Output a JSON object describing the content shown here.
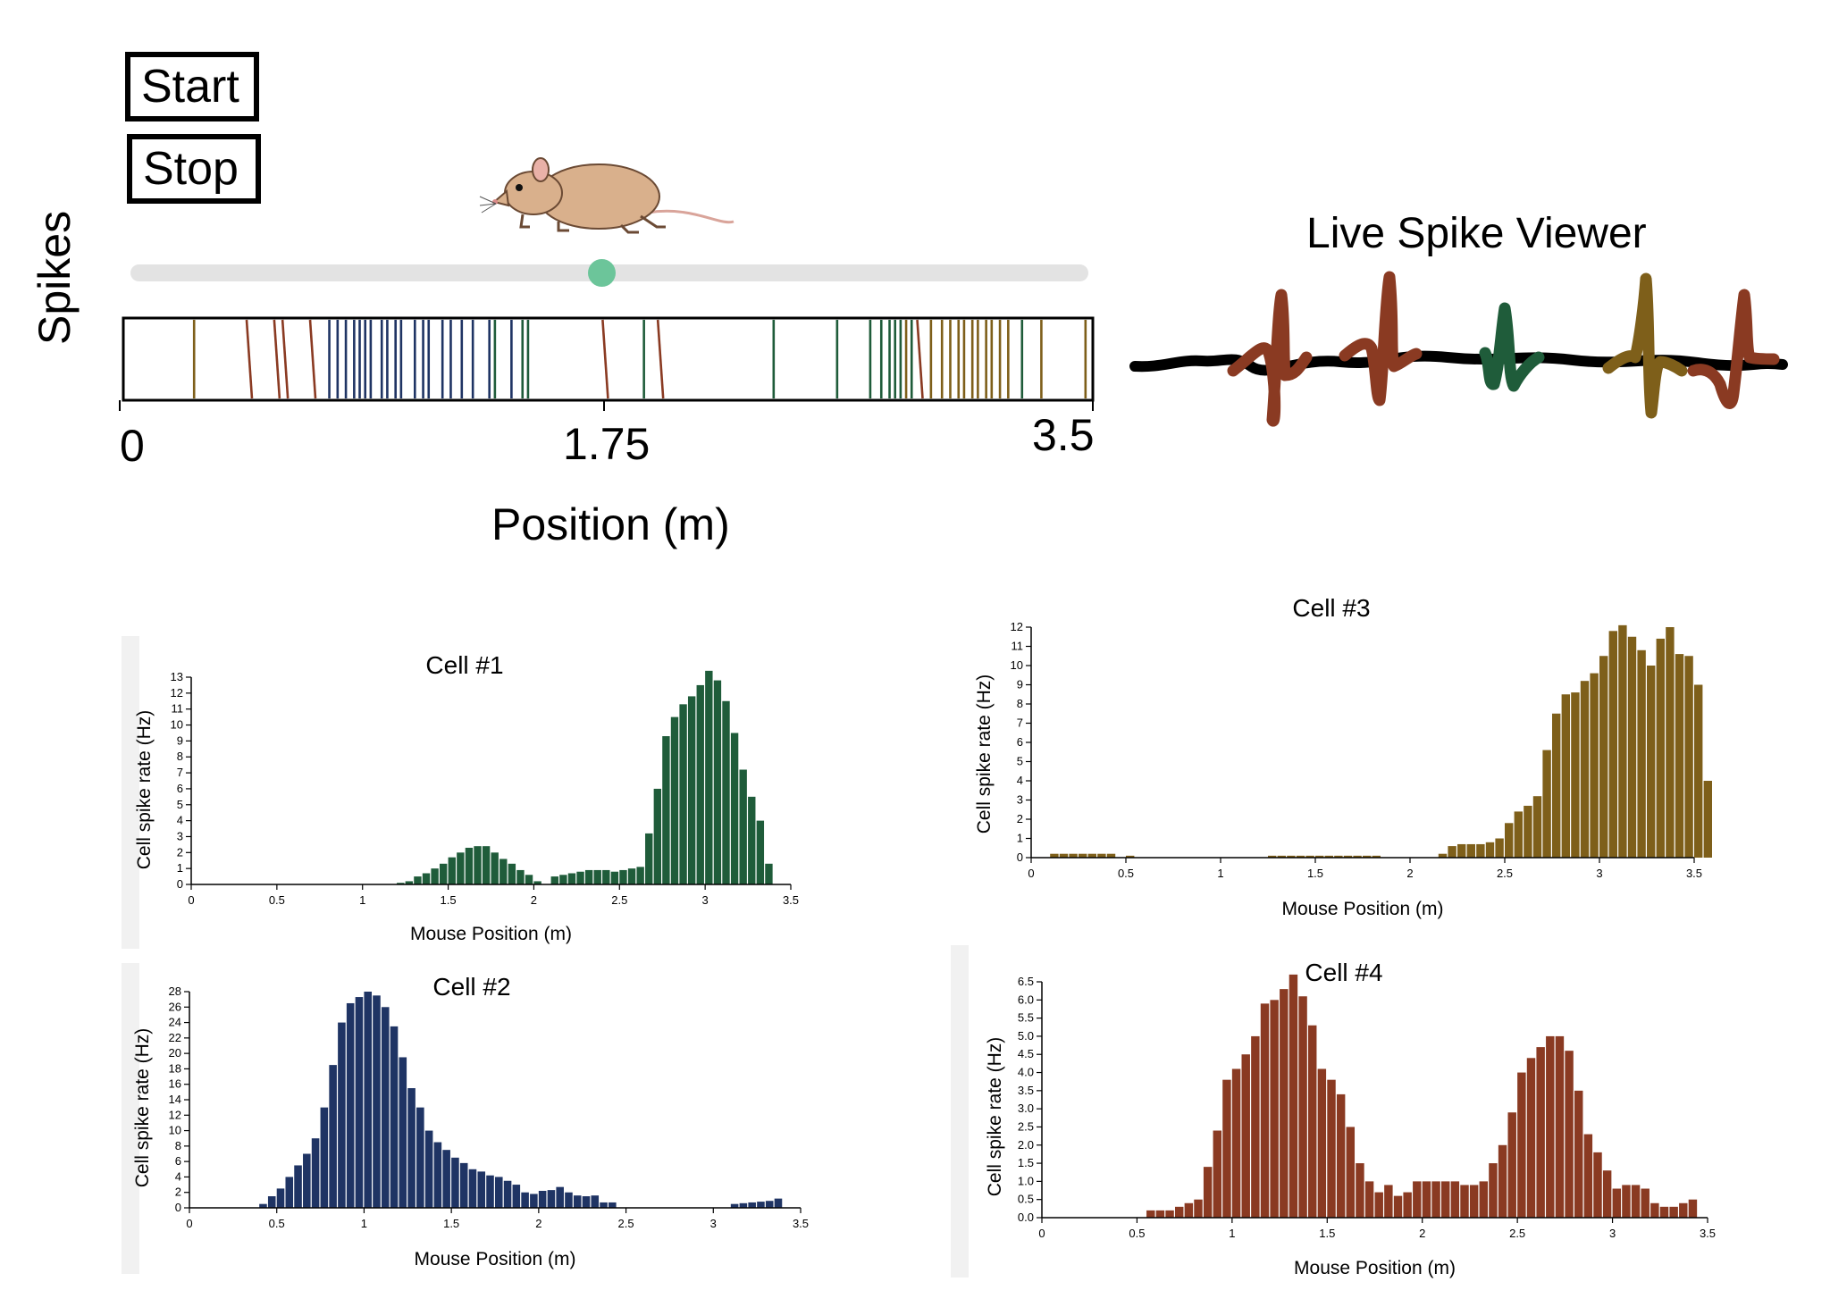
{
  "controls": {
    "start_label": "Start",
    "stop_label": "Stop",
    "slider_value_m": 1.72
  },
  "raster": {
    "ylabel": "Spikes",
    "xlabel": "Position (m)",
    "tick_min": "0",
    "tick_mid": "1.75",
    "tick_max": "3.5",
    "range": [
      0,
      3.5
    ],
    "spikes": [
      {
        "x": 0.25,
        "cell": 3
      },
      {
        "x": 0.45,
        "cell": 4
      },
      {
        "x": 0.55,
        "cell": 4
      },
      {
        "x": 0.58,
        "cell": 4
      },
      {
        "x": 0.68,
        "cell": 4
      },
      {
        "x": 0.74,
        "cell": 2
      },
      {
        "x": 0.77,
        "cell": 2
      },
      {
        "x": 0.8,
        "cell": 2
      },
      {
        "x": 0.83,
        "cell": 2
      },
      {
        "x": 0.85,
        "cell": 2
      },
      {
        "x": 0.87,
        "cell": 2
      },
      {
        "x": 0.89,
        "cell": 2
      },
      {
        "x": 0.93,
        "cell": 2
      },
      {
        "x": 0.95,
        "cell": 2
      },
      {
        "x": 0.98,
        "cell": 2
      },
      {
        "x": 1.0,
        "cell": 2
      },
      {
        "x": 1.05,
        "cell": 2
      },
      {
        "x": 1.08,
        "cell": 2
      },
      {
        "x": 1.1,
        "cell": 2
      },
      {
        "x": 1.15,
        "cell": 2
      },
      {
        "x": 1.18,
        "cell": 2
      },
      {
        "x": 1.22,
        "cell": 2
      },
      {
        "x": 1.26,
        "cell": 2
      },
      {
        "x": 1.32,
        "cell": 2
      },
      {
        "x": 1.34,
        "cell": 1
      },
      {
        "x": 1.4,
        "cell": 2
      },
      {
        "x": 1.44,
        "cell": 1
      },
      {
        "x": 1.46,
        "cell": 1
      },
      {
        "x": 1.74,
        "cell": 4
      },
      {
        "x": 1.88,
        "cell": 1
      },
      {
        "x": 1.94,
        "cell": 4
      },
      {
        "x": 2.35,
        "cell": 1
      },
      {
        "x": 2.58,
        "cell": 1
      },
      {
        "x": 2.7,
        "cell": 1
      },
      {
        "x": 2.74,
        "cell": 1
      },
      {
        "x": 2.77,
        "cell": 1
      },
      {
        "x": 2.79,
        "cell": 1
      },
      {
        "x": 2.81,
        "cell": 1
      },
      {
        "x": 2.83,
        "cell": 3
      },
      {
        "x": 2.85,
        "cell": 1
      },
      {
        "x": 2.88,
        "cell": 4
      },
      {
        "x": 2.92,
        "cell": 3
      },
      {
        "x": 2.96,
        "cell": 3
      },
      {
        "x": 2.99,
        "cell": 3
      },
      {
        "x": 3.02,
        "cell": 3
      },
      {
        "x": 3.04,
        "cell": 3
      },
      {
        "x": 3.07,
        "cell": 3
      },
      {
        "x": 3.09,
        "cell": 3
      },
      {
        "x": 3.12,
        "cell": 3
      },
      {
        "x": 3.14,
        "cell": 3
      },
      {
        "x": 3.17,
        "cell": 3
      },
      {
        "x": 3.2,
        "cell": 3
      },
      {
        "x": 3.25,
        "cell": 1
      },
      {
        "x": 3.32,
        "cell": 3
      },
      {
        "x": 3.48,
        "cell": 3
      }
    ]
  },
  "viewer": {
    "title": "Live Spike Viewer",
    "spike_sequence": [
      4,
      4,
      1,
      3,
      4
    ]
  },
  "colors": {
    "cell1": "#1f5c3a",
    "cell2": "#1f3464",
    "cell3": "#7e5f1a",
    "cell4": "#8a3a22",
    "slider_thumb": "#6cc59a",
    "slider_track": "#e3e3e3"
  },
  "chart_data": [
    {
      "type": "bar",
      "title": "Cell #1",
      "xlabel": "Mouse Position (m)",
      "ylabel": "Cell spike rate (Hz)",
      "xlim": [
        0,
        3.5
      ],
      "ylim": [
        0,
        13
      ],
      "yticks": [
        0,
        1,
        2,
        3,
        4,
        5,
        6,
        7,
        8,
        9,
        10,
        11,
        12,
        13
      ],
      "xticks": [
        0,
        0.5,
        1,
        1.5,
        2,
        2.5,
        3,
        3.5
      ],
      "bin_width": 0.05,
      "values": [
        0,
        0,
        0,
        0,
        0,
        0,
        0,
        0,
        0,
        0,
        0,
        0,
        0,
        0,
        0,
        0,
        0,
        0,
        0,
        0,
        0,
        0,
        0,
        0,
        0.1,
        0.2,
        0.5,
        0.7,
        1.0,
        1.3,
        1.7,
        2.0,
        2.3,
        2.4,
        2.4,
        2.0,
        1.6,
        1.3,
        0.9,
        0.6,
        0.2,
        0,
        0.5,
        0.6,
        0.7,
        0.8,
        0.9,
        0.9,
        0.9,
        0.8,
        0.9,
        1.0,
        1.1,
        3.2,
        6.0,
        9.3,
        10.5,
        11.3,
        11.8,
        12.5,
        13.4,
        12.8,
        11.5,
        9.5,
        7.2,
        5.5,
        4.0,
        1.3,
        0
      ]
    },
    {
      "type": "bar",
      "title": "Cell #2",
      "xlabel": "Mouse Position (m)",
      "ylabel": "Cell spike rate (Hz)",
      "xlim": [
        0,
        3.5
      ],
      "ylim": [
        0,
        28
      ],
      "yticks": [
        0,
        2,
        4,
        6,
        8,
        10,
        12,
        14,
        16,
        18,
        20,
        22,
        24,
        26,
        28
      ],
      "xticks": [
        0,
        0.5,
        1,
        1.5,
        2,
        2.5,
        3,
        3.5
      ],
      "bin_width": 0.05,
      "values": [
        0,
        0,
        0,
        0,
        0,
        0,
        0,
        0,
        0.5,
        1.5,
        2.5,
        4.0,
        5.5,
        7.0,
        9.0,
        13.0,
        18.5,
        24.0,
        26.5,
        27.3,
        28.0,
        27.5,
        26.0,
        23.5,
        19.5,
        15.5,
        13.0,
        10.0,
        8.5,
        7.5,
        6.5,
        5.8,
        5.0,
        4.7,
        4.2,
        4.0,
        3.5,
        3.0,
        2.0,
        1.8,
        2.2,
        2.3,
        2.7,
        2.0,
        1.6,
        1.5,
        1.6,
        0.7,
        0.7,
        0,
        0,
        0,
        0,
        0,
        0,
        0,
        0,
        0,
        0,
        0,
        0,
        0,
        0.5,
        0.6,
        0.7,
        0.8,
        0.9,
        1.2,
        0
      ]
    },
    {
      "type": "bar",
      "title": "Cell #3",
      "xlabel": "Mouse Position (m)",
      "ylabel": "Cell spike rate (Hz)",
      "xlim": [
        0,
        3.5
      ],
      "ylim": [
        0,
        12
      ],
      "yticks": [
        0,
        1,
        2,
        3,
        4,
        5,
        6,
        7,
        8,
        9,
        10,
        11,
        12
      ],
      "xticks": [
        0,
        0.5,
        1,
        1.5,
        2,
        2.5,
        3,
        3.5
      ],
      "bin_width": 0.05,
      "values": [
        0,
        0,
        0.2,
        0.2,
        0.2,
        0.2,
        0.2,
        0.2,
        0.2,
        0,
        0.1,
        0,
        0,
        0,
        0,
        0,
        0,
        0,
        0,
        0,
        0,
        0,
        0,
        0,
        0,
        0.1,
        0.1,
        0.1,
        0.1,
        0.1,
        0.1,
        0.1,
        0.1,
        0.1,
        0.1,
        0.1,
        0.1,
        0,
        0,
        0,
        0,
        0,
        0,
        0.2,
        0.6,
        0.7,
        0.7,
        0.7,
        0.8,
        1.0,
        1.8,
        2.4,
        2.7,
        3.2,
        5.6,
        7.5,
        8.5,
        8.6,
        9.2,
        9.6,
        10.5,
        11.8,
        12.1,
        11.5,
        10.8,
        10.0,
        11.4,
        12.0,
        10.6,
        10.5,
        9.0,
        4.0
      ]
    },
    {
      "type": "bar",
      "title": "Cell #4",
      "xlabel": "Mouse Position (m)",
      "ylabel": "Cell spike rate (Hz)",
      "xlim": [
        0,
        3.5
      ],
      "ylim": [
        0,
        6.5
      ],
      "yticks": [
        "0.0",
        "0.5",
        "1.0",
        "1.5",
        "2.0",
        "2.5",
        "3.0",
        "3.5",
        "4.0",
        "4.5",
        "5.0",
        "5.5",
        "6.0",
        "6.5"
      ],
      "xticks": [
        0,
        0.5,
        1,
        1.5,
        2,
        2.5,
        3,
        3.5
      ],
      "bin_width": 0.05,
      "values": [
        0,
        0,
        0,
        0,
        0,
        0,
        0,
        0,
        0,
        0,
        0,
        0.2,
        0.2,
        0.2,
        0.3,
        0.4,
        0.5,
        1.4,
        2.4,
        3.8,
        4.1,
        4.5,
        5.0,
        5.9,
        6.0,
        6.3,
        6.7,
        6.1,
        5.3,
        4.1,
        3.8,
        3.4,
        2.5,
        1.5,
        1.0,
        0.7,
        0.9,
        0.6,
        0.7,
        1.0,
        1.0,
        1.0,
        1.0,
        1.0,
        0.9,
        0.9,
        1.0,
        1.5,
        2.0,
        2.9,
        4.0,
        4.4,
        4.7,
        5.0,
        5.0,
        4.6,
        3.5,
        2.3,
        1.8,
        1.3,
        0.8,
        0.9,
        0.9,
        0.8,
        0.4,
        0.3,
        0.3,
        0.4,
        0.5
      ]
    }
  ]
}
